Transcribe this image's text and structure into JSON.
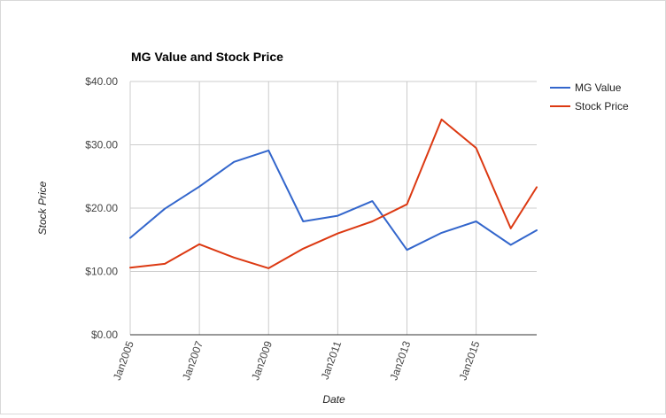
{
  "chart_data": {
    "type": "line",
    "title": "MG Value and Stock Price",
    "xlabel": "Date",
    "ylabel": "Stock Price",
    "x": [
      "2005-01",
      "2006-01",
      "2007-01",
      "2008-01",
      "2009-01",
      "2010-01",
      "2011-01",
      "2012-01",
      "2013-01",
      "2014-01",
      "2015-01",
      "2016-01",
      "2016-10"
    ],
    "series": [
      {
        "name": "MG Value",
        "color": "#3366cc",
        "values": [
          15.3,
          19.9,
          23.4,
          27.3,
          29.1,
          17.9,
          18.8,
          21.1,
          13.4,
          16.1,
          17.9,
          14.2,
          16.5
        ]
      },
      {
        "name": "Stock Price",
        "color": "#dc3912",
        "values": [
          10.6,
          11.2,
          14.3,
          12.2,
          10.5,
          13.6,
          16.0,
          17.9,
          20.6,
          34.0,
          29.5,
          16.8,
          23.3
        ]
      }
    ],
    "ylim": [
      0,
      40
    ],
    "yticks": [
      0,
      10,
      20,
      30,
      40
    ],
    "ytick_labels": [
      "$0.00",
      "$10.00",
      "$20.00",
      "$30.00",
      "$40.00"
    ],
    "xticks": [
      "Jan2005",
      "Jan2007",
      "Jan2009",
      "Jan2011",
      "Jan2013",
      "Jan2015"
    ],
    "grid": true,
    "legend_position": "right"
  }
}
